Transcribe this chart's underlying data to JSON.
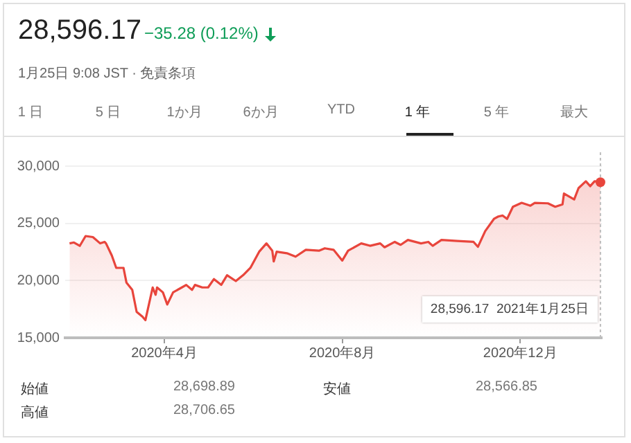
{
  "chart_data": {
    "type": "area",
    "title": "28,596.17",
    "subtitle": "−35.28 (0.12%)",
    "x": [
      "2020-01-27",
      "2020-01-30",
      "2020-02-03",
      "2020-02-07",
      "2020-02-12",
      "2020-02-17",
      "2020-02-20",
      "2020-02-21",
      "2020-02-25",
      "2020-02-28",
      "2020-03-04",
      "2020-03-06",
      "2020-03-10",
      "2020-03-13",
      "2020-03-17",
      "2020-03-19",
      "2020-03-24",
      "2020-03-26",
      "2020-03-27",
      "2020-03-31",
      "2020-04-03",
      "2020-04-07",
      "2020-04-13",
      "2020-04-16",
      "2020-04-20",
      "2020-04-22",
      "2020-04-27",
      "2020-05-01",
      "2020-05-05",
      "2020-05-10",
      "2020-05-14",
      "2020-05-20",
      "2020-05-25",
      "2020-05-30",
      "2020-06-05",
      "2020-06-10",
      "2020-06-14",
      "2020-06-15",
      "2020-06-17",
      "2020-06-24",
      "2020-06-30",
      "2020-07-07",
      "2020-07-16",
      "2020-07-20",
      "2020-07-26",
      "2020-08-01",
      "2020-08-05",
      "2020-08-14",
      "2020-08-20",
      "2020-08-27",
      "2020-08-30",
      "2020-09-06",
      "2020-09-10",
      "2020-09-15",
      "2020-09-24",
      "2020-09-29",
      "2020-10-02",
      "2020-10-08",
      "2020-10-19",
      "2020-10-30",
      "2020-11-02",
      "2020-11-07",
      "2020-11-13",
      "2020-11-16",
      "2020-11-19",
      "2020-11-22",
      "2020-11-26",
      "2020-12-02",
      "2020-12-08",
      "2020-12-11",
      "2020-12-20",
      "2020-12-25",
      "2020-12-30",
      "2020-12-31",
      "2021-01-07",
      "2021-01-10",
      "2021-01-15",
      "2021-01-18",
      "2021-01-21",
      "2021-01-25"
    ],
    "series": [
      {
        "color": "#e8453c",
        "values": [
          23250,
          23330,
          23030,
          23890,
          23800,
          23250,
          23380,
          23250,
          22180,
          21110,
          21110,
          19830,
          19190,
          17270,
          16840,
          16540,
          19400,
          18760,
          19400,
          18970,
          17910,
          18970,
          19400,
          19620,
          19190,
          19620,
          19400,
          19400,
          20130,
          19620,
          20470,
          19960,
          20470,
          21110,
          22520,
          23250,
          22610,
          21670,
          22520,
          22390,
          22090,
          22690,
          22610,
          22820,
          22690,
          21750,
          22610,
          23250,
          23040,
          23250,
          22910,
          23380,
          23120,
          23550,
          23250,
          23380,
          23040,
          23550,
          23460,
          23380,
          22950,
          24320,
          25390,
          25600,
          25680,
          25390,
          26450,
          26790,
          26540,
          26790,
          26750,
          26450,
          26660,
          27600,
          27090,
          28080,
          28680,
          28250,
          28680,
          28596.17
        ]
      }
    ],
    "xlim": [
      "2020-01-24",
      "2021-01-26"
    ],
    "xticks": [
      {
        "value": "2020-04-01",
        "label": "2020年4月"
      },
      {
        "value": "2020-08-01",
        "label": "2020年8月"
      },
      {
        "value": "2020-12-01",
        "label": "2020年12月"
      }
    ],
    "ylim": [
      15000,
      30000
    ],
    "yticks": [
      {
        "value": 15000,
        "label": "15,000"
      },
      {
        "value": 20000,
        "label": "20,000"
      },
      {
        "value": 25000,
        "label": "25,000"
      },
      {
        "value": 30000,
        "label": "30,000"
      }
    ],
    "grid": "y",
    "legend": false,
    "marker": "none",
    "line_style": "solid",
    "ref_lines": [
      {
        "axis": "x",
        "value": "2021-01-25",
        "line_style": "dotted",
        "color": "#bdbdbd"
      }
    ],
    "annotations": [
      "1月25日 9:08 JST · 免責条項",
      "1 日",
      "5 日",
      "1か月",
      "6か月",
      "YTD",
      "1 年",
      "5 年",
      "最大",
      "始値",
      "28,698.89",
      "安値",
      "28,566.85",
      "高値",
      "28,706.65",
      "28,596.17  2021年1月25日"
    ]
  }
}
